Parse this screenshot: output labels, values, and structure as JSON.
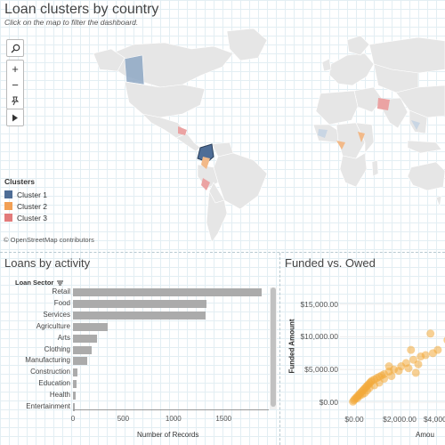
{
  "map": {
    "title": "Loan clusters by country",
    "subtitle": "Click on the map to filter the dashboard.",
    "attribution": "© OpenStreetMap contributors",
    "controls": [
      {
        "name": "search-icon",
        "glyph": "⚲"
      },
      {
        "name": "zoom-in-icon",
        "glyph": "+"
      },
      {
        "name": "zoom-out-icon",
        "glyph": "−"
      },
      {
        "name": "pin-icon",
        "glyph": "⚲"
      },
      {
        "name": "play-icon",
        "glyph": "▸"
      }
    ],
    "legend": {
      "title": "Clusters",
      "items": [
        {
          "label": "Cluster 1",
          "color": "#4e6d96"
        },
        {
          "label": "Cluster 2",
          "color": "#f2a055"
        },
        {
          "label": "Cluster 3",
          "color": "#e27b7b"
        }
      ]
    },
    "colors": {
      "land": "#e6e6e6",
      "highlight": "#8fa8c4",
      "selected": "#4e6d96",
      "cluster2": "#f2b988",
      "cluster3": "#eba3a3"
    }
  },
  "activity": {
    "title": "Loans by activity",
    "sector_header": "Loan Sector",
    "x_label": "Number of Records",
    "bar_color": "#ababab"
  },
  "scatter": {
    "title": "Funded vs. Owed",
    "y_label": "Funded Amount",
    "x_label": "Amou",
    "point_color": "#f2a93b"
  },
  "chart_data": [
    {
      "type": "bar",
      "title": "Loans by activity",
      "categories": [
        "Retail",
        "Food",
        "Services",
        "Agriculture",
        "Arts",
        "Clothing",
        "Manufacturing",
        "Construction",
        "Education",
        "Health",
        "Entertainment"
      ],
      "values": [
        1880,
        1330,
        1320,
        350,
        240,
        190,
        140,
        45,
        35,
        30,
        20
      ],
      "xlabel": "Number of Records",
      "xlim": [
        0,
        1950
      ],
      "xticks": [
        "0",
        "500",
        "1000",
        "1500"
      ]
    },
    {
      "type": "scatter",
      "title": "Funded vs. Owed",
      "ylabel": "Funded Amount",
      "xlabel": "Amou",
      "ylim": [
        0,
        17000
      ],
      "xlim": [
        0,
        4300
      ],
      "yticks": [
        "$15,000.00",
        "$10,000.00",
        "$5,000.00",
        "$0.00"
      ],
      "xticks": [
        "$0.00",
        "$2,000.00",
        "$4,000."
      ],
      "points": [
        [
          20,
          100
        ],
        [
          60,
          300
        ],
        [
          100,
          500
        ],
        [
          150,
          700
        ],
        [
          200,
          900
        ],
        [
          250,
          1100
        ],
        [
          300,
          1300
        ],
        [
          350,
          1500
        ],
        [
          400,
          1700
        ],
        [
          450,
          1900
        ],
        [
          500,
          2100
        ],
        [
          550,
          2300
        ],
        [
          600,
          2500
        ],
        [
          650,
          2700
        ],
        [
          700,
          2900
        ],
        [
          750,
          3100
        ],
        [
          800,
          3300
        ],
        [
          900,
          3500
        ],
        [
          1000,
          3700
        ],
        [
          1100,
          3900
        ],
        [
          1200,
          4100
        ],
        [
          1300,
          4300
        ],
        [
          1500,
          4700
        ],
        [
          1700,
          5000
        ],
        [
          2000,
          5500
        ],
        [
          2200,
          6000
        ],
        [
          2500,
          6500
        ],
        [
          2800,
          7000
        ],
        [
          3000,
          7200
        ],
        [
          3500,
          8000
        ],
        [
          200,
          600
        ],
        [
          300,
          1000
        ],
        [
          400,
          1200
        ],
        [
          500,
          1400
        ],
        [
          600,
          1800
        ],
        [
          700,
          2200
        ],
        [
          900,
          2600
        ],
        [
          1100,
          3000
        ],
        [
          1300,
          3600
        ],
        [
          1600,
          4000
        ],
        [
          1900,
          4800
        ],
        [
          2300,
          5200
        ],
        [
          3300,
          7500
        ],
        [
          3200,
          10500
        ],
        [
          3900,
          9500
        ],
        [
          2400,
          8000
        ],
        [
          1500,
          5500
        ],
        [
          2600,
          4500
        ],
        [
          2700,
          5800
        ]
      ]
    }
  ]
}
